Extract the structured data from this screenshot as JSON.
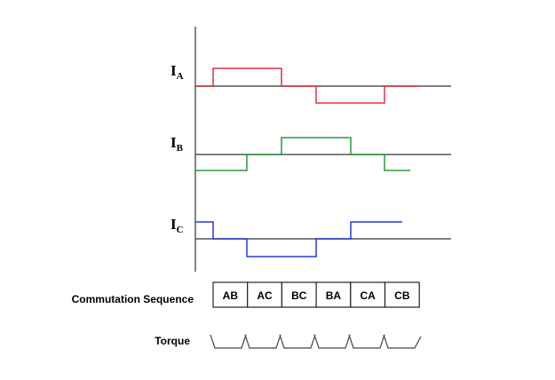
{
  "currents": [
    {
      "letter": "I",
      "subscript": "A"
    },
    {
      "letter": "I",
      "subscript": "B"
    },
    {
      "letter": "I",
      "subscript": "C"
    }
  ],
  "commutation": {
    "label": "Commutation Sequence",
    "steps": [
      "AB",
      "AC",
      "BC",
      "BA",
      "CA",
      "CB"
    ]
  },
  "torque": {
    "label": "Torque"
  }
}
